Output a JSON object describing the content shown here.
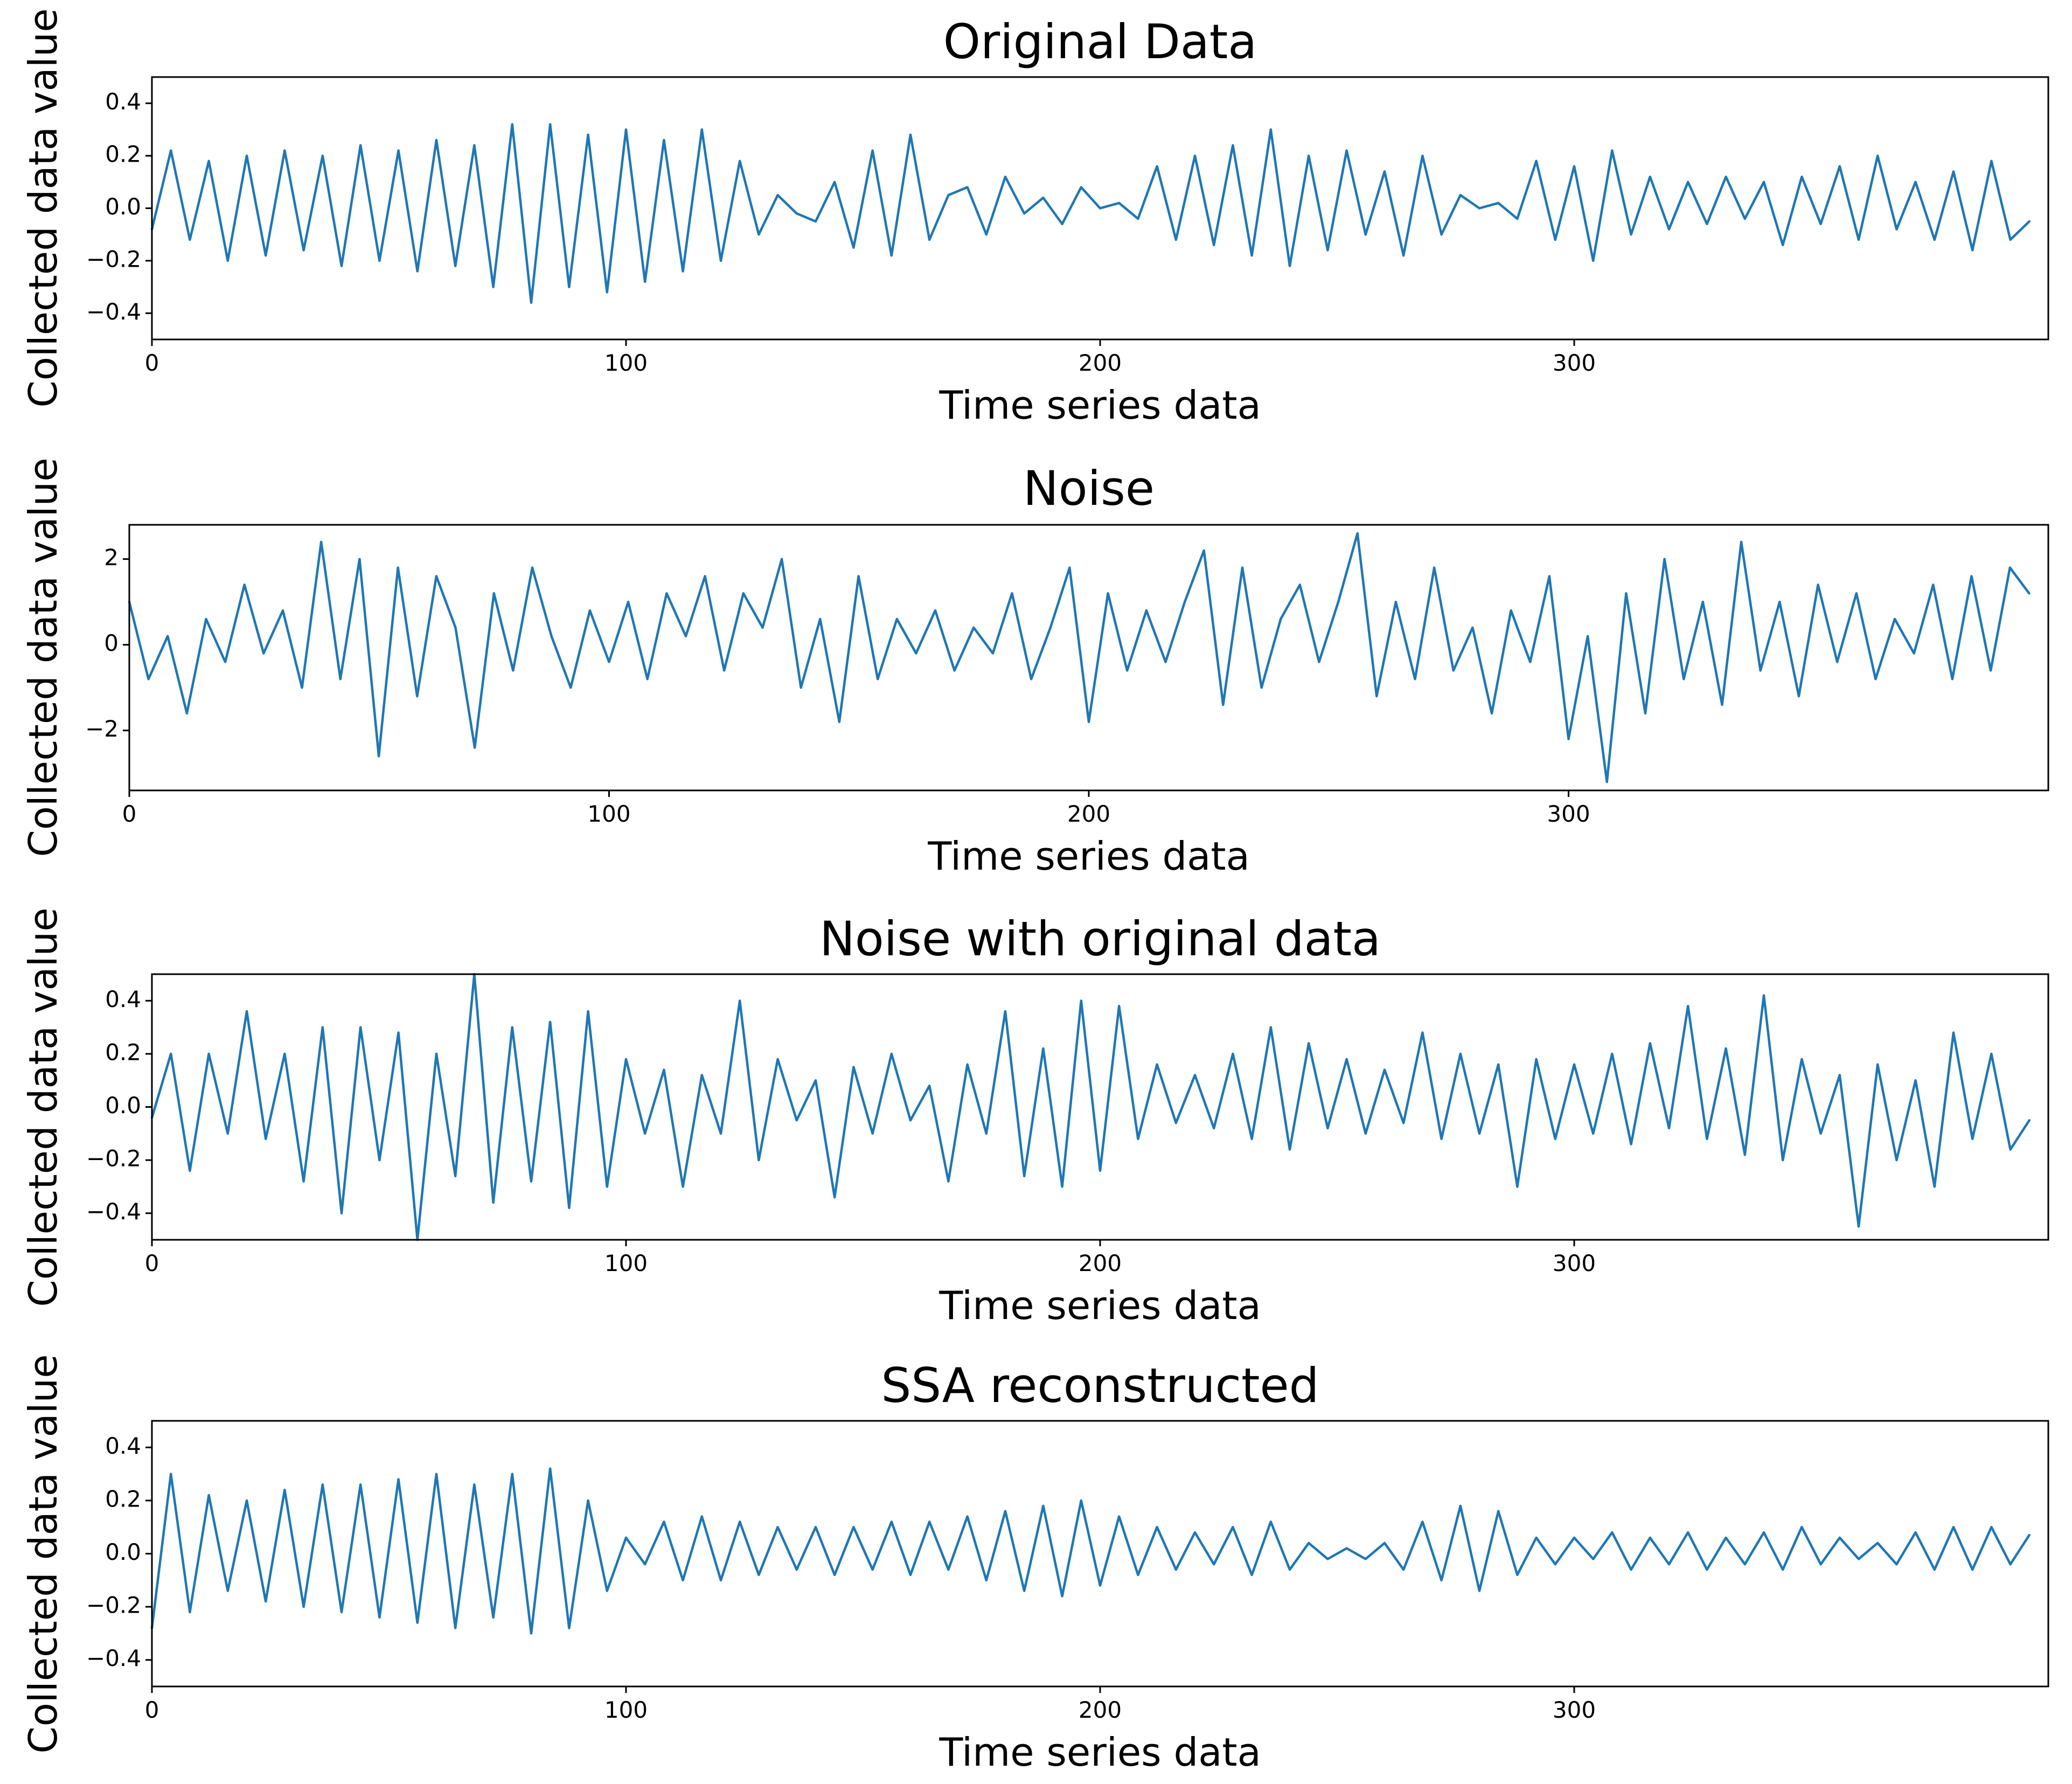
{
  "colors": {
    "series": "#1f77b4",
    "axes": "#000000",
    "background": "#ffffff"
  },
  "chart_data": [
    {
      "type": "line",
      "title": "Original Data",
      "xlabel": "Time series data",
      "ylabel": "Collected data value",
      "xlim": [
        0,
        400
      ],
      "ylim": [
        -0.5,
        0.5
      ],
      "xticks": [
        0,
        100,
        200,
        300
      ],
      "xtick_labels": [
        "0",
        "100",
        "200",
        "300"
      ],
      "yticks": [
        -0.4,
        -0.2,
        0.0,
        0.2,
        0.4
      ],
      "ytick_labels": [
        "−0.4",
        "−0.2",
        "0.0",
        "0.2",
        "0.4"
      ],
      "series": [
        {
          "name": "original",
          "x_start": 0,
          "x_step": 4,
          "values": [
            -0.08,
            0.22,
            -0.12,
            0.18,
            -0.2,
            0.2,
            -0.18,
            0.22,
            -0.16,
            0.2,
            -0.22,
            0.24,
            -0.2,
            0.22,
            -0.24,
            0.26,
            -0.22,
            0.24,
            -0.3,
            0.32,
            -0.36,
            0.32,
            -0.3,
            0.28,
            -0.32,
            0.3,
            -0.28,
            0.26,
            -0.24,
            0.3,
            -0.2,
            0.18,
            -0.1,
            0.05,
            -0.02,
            -0.05,
            0.1,
            -0.15,
            0.22,
            -0.18,
            0.28,
            -0.12,
            0.05,
            0.08,
            -0.1,
            0.12,
            -0.02,
            0.04,
            -0.06,
            0.08,
            0.0,
            0.02,
            -0.04,
            0.16,
            -0.12,
            0.2,
            -0.14,
            0.24,
            -0.18,
            0.3,
            -0.22,
            0.2,
            -0.16,
            0.22,
            -0.1,
            0.14,
            -0.18,
            0.2,
            -0.1,
            0.05,
            0.0,
            0.02,
            -0.04,
            0.18,
            -0.12,
            0.16,
            -0.2,
            0.22,
            -0.1,
            0.12,
            -0.08,
            0.1,
            -0.06,
            0.12,
            -0.04,
            0.1,
            -0.14,
            0.12,
            -0.06,
            0.16,
            -0.12,
            0.2,
            -0.08,
            0.1,
            -0.12,
            0.14,
            -0.16,
            0.18,
            -0.12,
            -0.05
          ]
        }
      ],
      "line_color": "#1f77b4"
    },
    {
      "type": "line",
      "title": "Noise",
      "xlabel": "Time series data",
      "ylabel": "Collected data value",
      "xlim": [
        0,
        400
      ],
      "ylim": [
        -3.4,
        2.8
      ],
      "xticks": [
        0,
        100,
        200,
        300
      ],
      "xtick_labels": [
        "0",
        "100",
        "200",
        "300"
      ],
      "yticks": [
        -2,
        0,
        2
      ],
      "ytick_labels": [
        "−2",
        "0",
        "2"
      ],
      "series": [
        {
          "name": "noise",
          "x_start": 0,
          "x_step": 4,
          "values": [
            1.0,
            -0.8,
            0.2,
            -1.6,
            0.6,
            -0.4,
            1.4,
            -0.2,
            0.8,
            -1.0,
            2.4,
            -0.8,
            2.0,
            -2.6,
            1.8,
            -1.2,
            1.6,
            0.4,
            -2.4,
            1.2,
            -0.6,
            1.8,
            0.2,
            -1.0,
            0.8,
            -0.4,
            1.0,
            -0.8,
            1.2,
            0.2,
            1.6,
            -0.6,
            1.2,
            0.4,
            2.0,
            -1.0,
            0.6,
            -1.8,
            1.6,
            -0.8,
            0.6,
            -0.2,
            0.8,
            -0.6,
            0.4,
            -0.2,
            1.2,
            -0.8,
            0.4,
            1.8,
            -1.8,
            1.2,
            -0.6,
            0.8,
            -0.4,
            1.0,
            2.2,
            -1.4,
            1.8,
            -1.0,
            0.6,
            1.4,
            -0.4,
            1.0,
            2.6,
            -1.2,
            1.0,
            -0.8,
            1.8,
            -0.6,
            0.4,
            -1.6,
            0.8,
            -0.4,
            1.6,
            -2.2,
            0.2,
            -3.2,
            1.2,
            -1.6,
            2.0,
            -0.8,
            1.0,
            -1.4,
            2.4,
            -0.6,
            1.0,
            -1.2,
            1.4,
            -0.4,
            1.2,
            -0.8,
            0.6,
            -0.2,
            1.4,
            -0.8,
            1.6,
            -0.6,
            1.8,
            1.2
          ]
        }
      ],
      "line_color": "#1f77b4"
    },
    {
      "type": "line",
      "title": "Noise with original data",
      "xlabel": "Time series data",
      "ylabel": "Collected data value",
      "xlim": [
        0,
        400
      ],
      "ylim": [
        -0.5,
        0.5
      ],
      "xticks": [
        0,
        100,
        200,
        300
      ],
      "xtick_labels": [
        "0",
        "100",
        "200",
        "300"
      ],
      "yticks": [
        -0.4,
        -0.2,
        0.0,
        0.2,
        0.4
      ],
      "ytick_labels": [
        "−0.4",
        "−0.2",
        "0.0",
        "0.2",
        "0.4"
      ],
      "series": [
        {
          "name": "noisy",
          "x_start": 0,
          "x_step": 4,
          "values": [
            -0.04,
            0.2,
            -0.24,
            0.2,
            -0.1,
            0.36,
            -0.12,
            0.2,
            -0.28,
            0.3,
            -0.4,
            0.3,
            -0.2,
            0.28,
            -0.5,
            0.2,
            -0.26,
            0.5,
            -0.36,
            0.3,
            -0.28,
            0.32,
            -0.38,
            0.36,
            -0.3,
            0.18,
            -0.1,
            0.14,
            -0.3,
            0.12,
            -0.1,
            0.4,
            -0.2,
            0.18,
            -0.05,
            0.1,
            -0.34,
            0.15,
            -0.1,
            0.2,
            -0.05,
            0.08,
            -0.28,
            0.16,
            -0.1,
            0.36,
            -0.26,
            0.22,
            -0.3,
            0.4,
            -0.24,
            0.38,
            -0.12,
            0.16,
            -0.06,
            0.12,
            -0.08,
            0.2,
            -0.12,
            0.3,
            -0.16,
            0.24,
            -0.08,
            0.18,
            -0.1,
            0.14,
            -0.06,
            0.28,
            -0.12,
            0.2,
            -0.1,
            0.16,
            -0.3,
            0.18,
            -0.12,
            0.16,
            -0.1,
            0.2,
            -0.14,
            0.24,
            -0.08,
            0.38,
            -0.12,
            0.22,
            -0.18,
            0.42,
            -0.2,
            0.18,
            -0.1,
            0.12,
            -0.45,
            0.16,
            -0.2,
            0.1,
            -0.3,
            0.28,
            -0.12,
            0.2,
            -0.16,
            -0.05
          ]
        }
      ],
      "line_color": "#1f77b4"
    },
    {
      "type": "line",
      "title": "SSA reconstructed",
      "xlabel": "Time series data",
      "ylabel": "Collected data value",
      "xlim": [
        0,
        400
      ],
      "ylim": [
        -0.5,
        0.5
      ],
      "xticks": [
        0,
        100,
        200,
        300
      ],
      "xtick_labels": [
        "0",
        "100",
        "200",
        "300"
      ],
      "yticks": [
        -0.4,
        -0.2,
        0.0,
        0.2,
        0.4
      ],
      "ytick_labels": [
        "−0.4",
        "−0.2",
        "0.0",
        "0.2",
        "0.4"
      ],
      "series": [
        {
          "name": "ssa",
          "x_start": 0,
          "x_step": 4,
          "values": [
            -0.28,
            0.3,
            -0.22,
            0.22,
            -0.14,
            0.2,
            -0.18,
            0.24,
            -0.2,
            0.26,
            -0.22,
            0.26,
            -0.24,
            0.28,
            -0.26,
            0.3,
            -0.28,
            0.26,
            -0.24,
            0.3,
            -0.3,
            0.32,
            -0.28,
            0.2,
            -0.14,
            0.06,
            -0.04,
            0.12,
            -0.1,
            0.14,
            -0.1,
            0.12,
            -0.08,
            0.1,
            -0.06,
            0.1,
            -0.08,
            0.1,
            -0.06,
            0.12,
            -0.08,
            0.12,
            -0.06,
            0.14,
            -0.1,
            0.16,
            -0.14,
            0.18,
            -0.16,
            0.2,
            -0.12,
            0.14,
            -0.08,
            0.1,
            -0.06,
            0.08,
            -0.04,
            0.1,
            -0.08,
            0.12,
            -0.06,
            0.04,
            -0.02,
            0.02,
            -0.02,
            0.04,
            -0.06,
            0.12,
            -0.1,
            0.18,
            -0.14,
            0.16,
            -0.08,
            0.06,
            -0.04,
            0.06,
            -0.02,
            0.08,
            -0.06,
            0.06,
            -0.04,
            0.08,
            -0.06,
            0.06,
            -0.04,
            0.08,
            -0.06,
            0.1,
            -0.04,
            0.06,
            -0.02,
            0.04,
            -0.04,
            0.08,
            -0.06,
            0.1,
            -0.06,
            0.1,
            -0.04,
            0.07
          ]
        }
      ],
      "line_color": "#1f77b4"
    }
  ]
}
